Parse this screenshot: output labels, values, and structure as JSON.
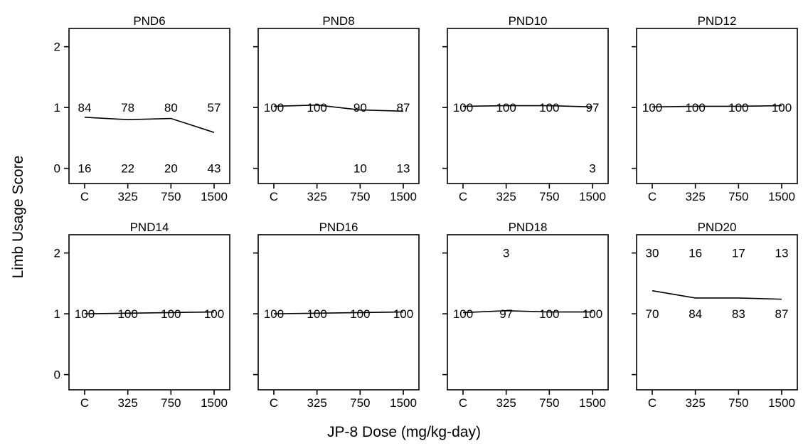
{
  "chart_data": {
    "type": "line",
    "xlabel": "JP-8 Dose (mg/kg-day)",
    "ylabel": "Limb Usage Score",
    "categories": [
      "C",
      "325",
      "750",
      "1500"
    ],
    "yticks": [
      "0",
      "1",
      "2"
    ],
    "ylim": [
      -0.25,
      2.3
    ],
    "grid": false,
    "panels": [
      {
        "title": "PND6",
        "values": [
          0.84,
          0.8,
          0.82,
          0.59
        ],
        "labels": [
          {
            "row": 1,
            "texts": [
              "84",
              "78",
              "80",
              "57"
            ]
          },
          {
            "row": 0,
            "texts": [
              "16",
              "22",
              "20",
              "43"
            ]
          }
        ]
      },
      {
        "title": "PND8",
        "values": [
          1.02,
          1.04,
          0.96,
          0.94
        ],
        "labels": [
          {
            "row": 1,
            "texts": [
              "100",
              "100",
              "90",
              "87"
            ]
          },
          {
            "row": 0,
            "texts": [
              "",
              "",
              "10",
              "13"
            ]
          }
        ]
      },
      {
        "title": "PND10",
        "values": [
          1.02,
          1.03,
          1.03,
          1.01
        ],
        "labels": [
          {
            "row": 1,
            "texts": [
              "100",
              "100",
              "100",
              "97"
            ]
          },
          {
            "row": 0,
            "texts": [
              "",
              "",
              "",
              "3"
            ]
          }
        ]
      },
      {
        "title": "PND12",
        "values": [
          1.01,
          1.02,
          1.02,
          1.03
        ],
        "labels": [
          {
            "row": 1,
            "texts": [
              "100",
              "100",
              "100",
              "100"
            ]
          }
        ]
      },
      {
        "title": "PND14",
        "values": [
          1.0,
          1.01,
          1.02,
          1.03
        ],
        "labels": [
          {
            "row": 1,
            "texts": [
              "100",
              "100",
              "100",
              "100"
            ]
          }
        ]
      },
      {
        "title": "PND16",
        "values": [
          1.0,
          1.01,
          1.02,
          1.03
        ],
        "labels": [
          {
            "row": 1,
            "texts": [
              "100",
              "100",
              "100",
              "100"
            ]
          }
        ]
      },
      {
        "title": "PND18",
        "values": [
          1.02,
          1.05,
          1.03,
          1.03
        ],
        "labels": [
          {
            "row": 2,
            "texts": [
              "",
              "3",
              "",
              ""
            ]
          },
          {
            "row": 1,
            "texts": [
              "100",
              "97",
              "100",
              "100"
            ]
          }
        ]
      },
      {
        "title": "PND20",
        "values": [
          1.38,
          1.26,
          1.26,
          1.24
        ],
        "labels": [
          {
            "row": 2,
            "texts": [
              "30",
              "16",
              "17",
              "13"
            ]
          },
          {
            "row": 1,
            "texts": [
              "70",
              "84",
              "83",
              "87"
            ]
          }
        ]
      }
    ]
  }
}
